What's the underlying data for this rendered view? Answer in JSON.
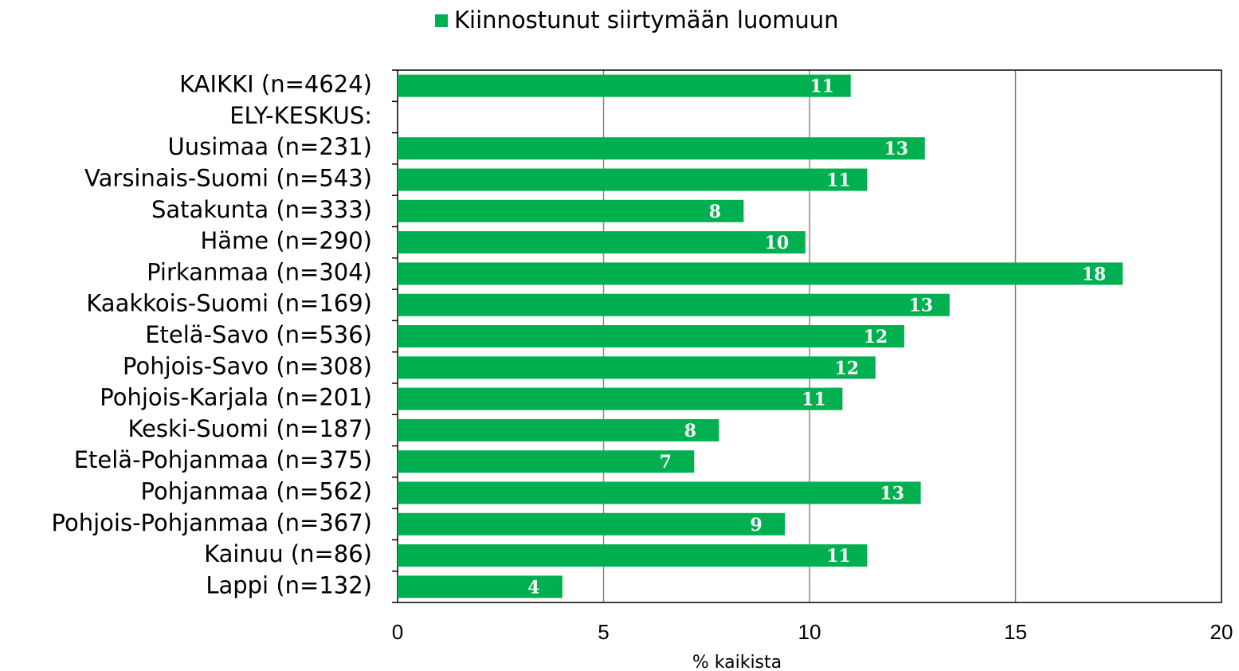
{
  "chart_data": {
    "type": "bar",
    "orientation": "horizontal",
    "legend": "top",
    "series": [
      {
        "name": "Kiinnostunut siirtymään luomuun",
        "color": "#00b050",
        "values": [
          11.0,
          null,
          12.8,
          11.4,
          8.4,
          9.9,
          17.6,
          13.4,
          12.3,
          11.6,
          10.8,
          7.8,
          7.2,
          12.7,
          9.4,
          11.4,
          4.0
        ],
        "value_labels": [
          "11",
          null,
          "13",
          "11",
          "8",
          "10",
          "18",
          "13",
          "12",
          "12",
          "11",
          "8",
          "7",
          "13",
          "9",
          "11",
          "4"
        ]
      }
    ],
    "categories": [
      "KAIKKI (n=4624)",
      "ELY-KESKUS:",
      "Uusimaa (n=231)",
      "Varsinais-Suomi (n=543)",
      "Satakunta (n=333)",
      "Häme (n=290)",
      "Pirkanmaa (n=304)",
      "Kaakkois-Suomi (n=169)",
      "Etelä-Savo (n=536)",
      "Pohjois-Savo (n=308)",
      "Pohjois-Karjala (n=201)",
      "Keski-Suomi (n=187)",
      "Etelä-Pohjanmaa (n=375)",
      "Pohjanmaa (n=562)",
      "Pohjois-Pohjanmaa (n=367)",
      "Kainuu (n=86)",
      "Lappi (n=132)"
    ],
    "xlabel": "% kaikista",
    "xlim": [
      0,
      20
    ],
    "xticks": [
      0,
      5,
      10,
      15,
      20
    ],
    "grid": true
  }
}
